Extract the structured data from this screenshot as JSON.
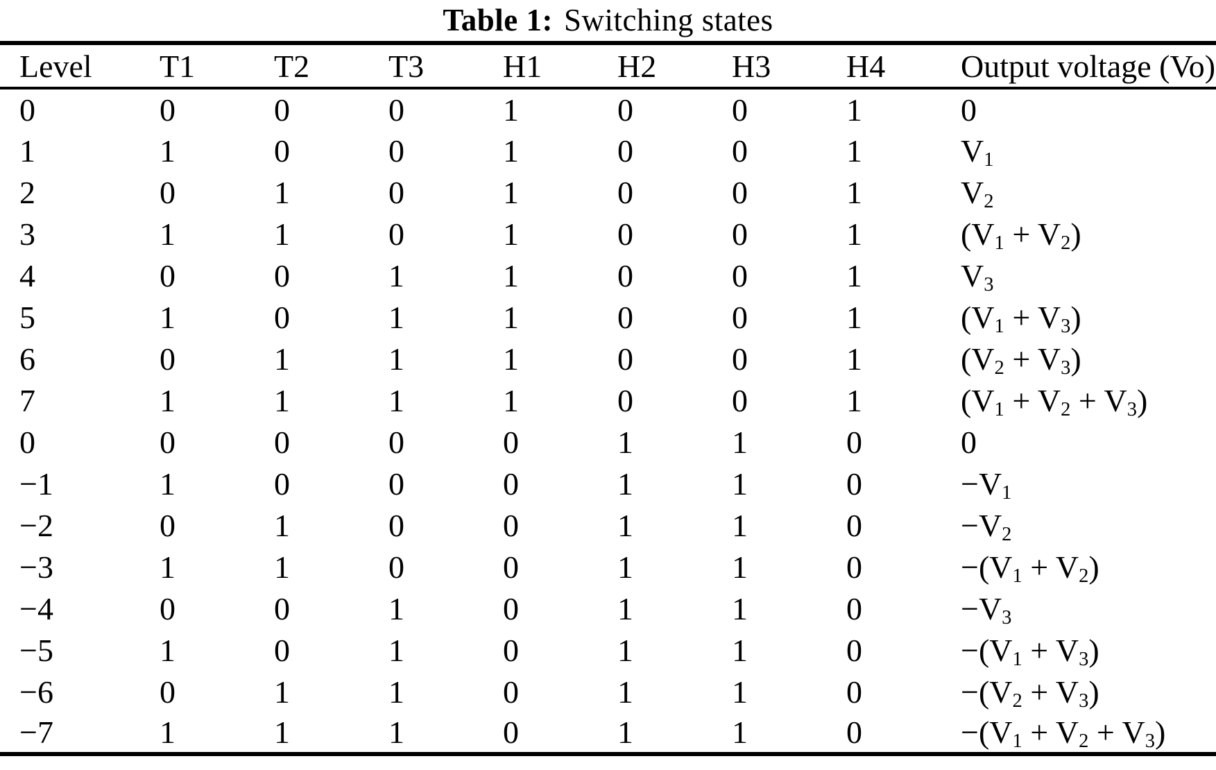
{
  "title": {
    "label": "Table 1:",
    "caption": "Switching states"
  },
  "table": {
    "columns": [
      "Level",
      "T1",
      "T2",
      "T3",
      "H1",
      "H2",
      "H3",
      "H4",
      "Output voltage (Vo)"
    ],
    "column_keys": [
      "level",
      "t1",
      "t2",
      "t3",
      "h1",
      "h2",
      "h3",
      "h4",
      "output-voltage"
    ],
    "rows": [
      [
        "0",
        "0",
        "0",
        "0",
        "1",
        "0",
        "0",
        "1",
        "0"
      ],
      [
        "1",
        "1",
        "0",
        "0",
        "1",
        "0",
        "0",
        "1",
        "V_1"
      ],
      [
        "2",
        "0",
        "1",
        "0",
        "1",
        "0",
        "0",
        "1",
        "V_2"
      ],
      [
        "3",
        "1",
        "1",
        "0",
        "1",
        "0",
        "0",
        "1",
        "(V_1 + V_2)"
      ],
      [
        "4",
        "0",
        "0",
        "1",
        "1",
        "0",
        "0",
        "1",
        "V_3"
      ],
      [
        "5",
        "1",
        "0",
        "1",
        "1",
        "0",
        "0",
        "1",
        "(V_1 + V_3)"
      ],
      [
        "6",
        "0",
        "1",
        "1",
        "1",
        "0",
        "0",
        "1",
        "(V_2 + V_3)"
      ],
      [
        "7",
        "1",
        "1",
        "1",
        "1",
        "0",
        "0",
        "1",
        "(V_1 + V_2 + V_3)"
      ],
      [
        "0",
        "0",
        "0",
        "0",
        "0",
        "1",
        "1",
        "0",
        "0"
      ],
      [
        "−1",
        "1",
        "0",
        "0",
        "0",
        "1",
        "1",
        "0",
        "−V_1"
      ],
      [
        "−2",
        "0",
        "1",
        "0",
        "0",
        "1",
        "1",
        "0",
        "−V_2"
      ],
      [
        "−3",
        "1",
        "1",
        "0",
        "0",
        "1",
        "1",
        "0",
        "−(V_1 + V_2)"
      ],
      [
        "−4",
        "0",
        "0",
        "1",
        "0",
        "1",
        "1",
        "0",
        "−V_3"
      ],
      [
        "−5",
        "1",
        "0",
        "1",
        "0",
        "1",
        "1",
        "0",
        "−(V_1 + V_3)"
      ],
      [
        "−6",
        "0",
        "1",
        "1",
        "0",
        "1",
        "1",
        "0",
        "−(V_2 + V_3)"
      ],
      [
        "−7",
        "1",
        "1",
        "1",
        "0",
        "1",
        "1",
        "0",
        "−(V_1 + V_2 + V_3)"
      ]
    ]
  },
  "colors": {
    "text": "#000000",
    "background": "#ffffff",
    "rule": "#000000"
  }
}
